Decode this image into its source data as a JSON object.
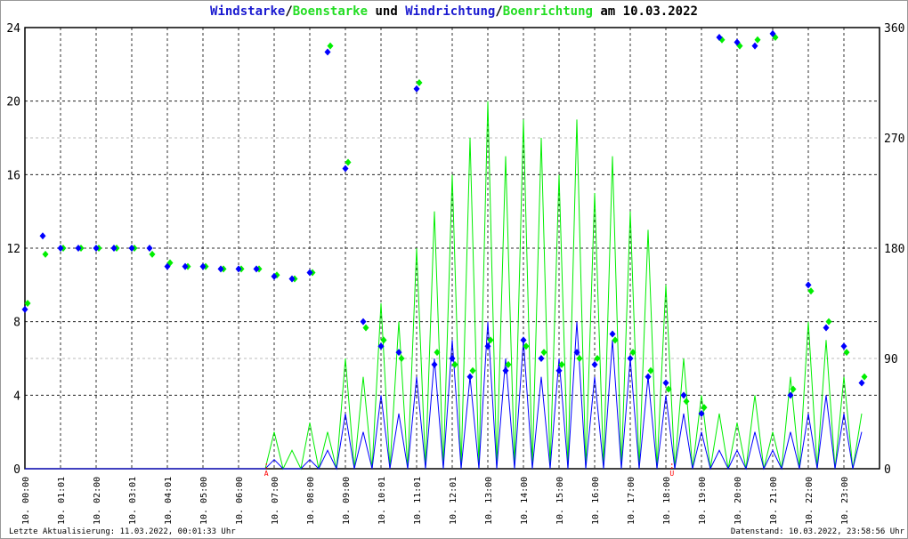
{
  "title": {
    "part1": "Windstarke",
    "sep1": "/",
    "part2": "Boenstarke",
    "part3": " und ",
    "part4": "Windrichtung",
    "sep2": "/",
    "part5": "Boenrichtung",
    "part6": " am 10.03.2022"
  },
  "footer": {
    "left": "Letzte Aktualisierung: 11.03.2022, 00:01:33 Uhr",
    "right": "Datenstand: 10.03.2022, 23:58:56 Uhr"
  },
  "colors": {
    "wind": "#0000ff",
    "gust": "#00ee00"
  },
  "chart_data": {
    "type": "line",
    "title": "Windstarke/Boenstarke und Windrichtung/Boenrichtung am 10.03.2022",
    "x_tick_labels": [
      "10. 00:00",
      "10. 01:01",
      "10. 02:00",
      "10. 03:01",
      "10. 04:01",
      "10. 05:00",
      "10. 06:00",
      "10. 07:00",
      "10. 08:00",
      "10. 09:00",
      "10. 10:01",
      "10. 11:01",
      "10. 12:01",
      "10. 13:00",
      "10. 14:00",
      "10. 15:00",
      "10. 16:00",
      "10. 17:00",
      "10. 18:00",
      "10. 19:00",
      "10. 20:00",
      "10. 21:00",
      "10. 22:00",
      "10. 23:00"
    ],
    "xlim_hours": [
      0,
      24
    ],
    "y_left": {
      "ylim": [
        0,
        24
      ],
      "ticks": [
        "0",
        "4",
        "8",
        "12",
        "16",
        "20",
        "24"
      ]
    },
    "y_right": {
      "ylim": [
        0,
        360
      ],
      "ticks": [
        "0",
        "90",
        "180",
        "270",
        "360"
      ]
    },
    "markers": [
      {
        "label": "A",
        "hour": 6.78
      },
      {
        "label": "U",
        "hour": 18.17
      }
    ],
    "x_hours": [
      0,
      0.5,
      1,
      1.5,
      2,
      2.5,
      3,
      3.5,
      4,
      4.5,
      5,
      5.5,
      6,
      6.5,
      7,
      7.5,
      8,
      8.5,
      9,
      9.5,
      10,
      10.5,
      11,
      11.5,
      12,
      12.5,
      13,
      13.5,
      14,
      14.5,
      15,
      15.5,
      16,
      16.5,
      17,
      17.5,
      18,
      18.5,
      19,
      19.5,
      20,
      20.5,
      21,
      21.5,
      22,
      22.5,
      23,
      23.5
    ],
    "series": [
      {
        "name": "Windstarke",
        "axis": "left",
        "kind": "line",
        "values": [
          0,
          0,
          0,
          0,
          0,
          0,
          0,
          0,
          0,
          0,
          0,
          0,
          0,
          0,
          0.5,
          0,
          0.5,
          1,
          3,
          2,
          4,
          3,
          5,
          6,
          7,
          5,
          8,
          6,
          7,
          5,
          6,
          8,
          5,
          7,
          6,
          5,
          4,
          3,
          2,
          1,
          1,
          2,
          1,
          2,
          3,
          4,
          3,
          2
        ]
      },
      {
        "name": "Boenstarke",
        "axis": "left",
        "kind": "line",
        "values": [
          0,
          0,
          0,
          0,
          0,
          0,
          0,
          0,
          0,
          0,
          0,
          0,
          0,
          0,
          2,
          1,
          2.5,
          2,
          6,
          5,
          9,
          8,
          12,
          14,
          16,
          18,
          20,
          17,
          19,
          18,
          16,
          19,
          15,
          17,
          14,
          13,
          10,
          6,
          4,
          3,
          2.5,
          4,
          2,
          5,
          8,
          7,
          5,
          3
        ]
      },
      {
        "name": "Windrichtung",
        "axis": "right",
        "kind": "points",
        "values": [
          130,
          190,
          180,
          180,
          180,
          180,
          180,
          180,
          165,
          165,
          165,
          163,
          163,
          163,
          157,
          155,
          160,
          340,
          245,
          120,
          100,
          95,
          310,
          85,
          90,
          75,
          100,
          80,
          105,
          90,
          80,
          95,
          85,
          110,
          90,
          75,
          70,
          60,
          45,
          352,
          348,
          345,
          355,
          60,
          150,
          115,
          100,
          70
        ]
      },
      {
        "name": "Boenrichtung",
        "axis": "right",
        "kind": "points",
        "values": [
          135,
          175,
          180,
          180,
          180,
          180,
          180,
          175,
          168,
          165,
          165,
          163,
          163,
          163,
          158,
          155,
          160,
          345,
          250,
          115,
          105,
          90,
          315,
          95,
          85,
          80,
          105,
          85,
          100,
          95,
          85,
          90,
          90,
          105,
          95,
          80,
          65,
          55,
          50,
          350,
          345,
          350,
          352,
          65,
          145,
          120,
          95,
          75
        ]
      }
    ]
  }
}
